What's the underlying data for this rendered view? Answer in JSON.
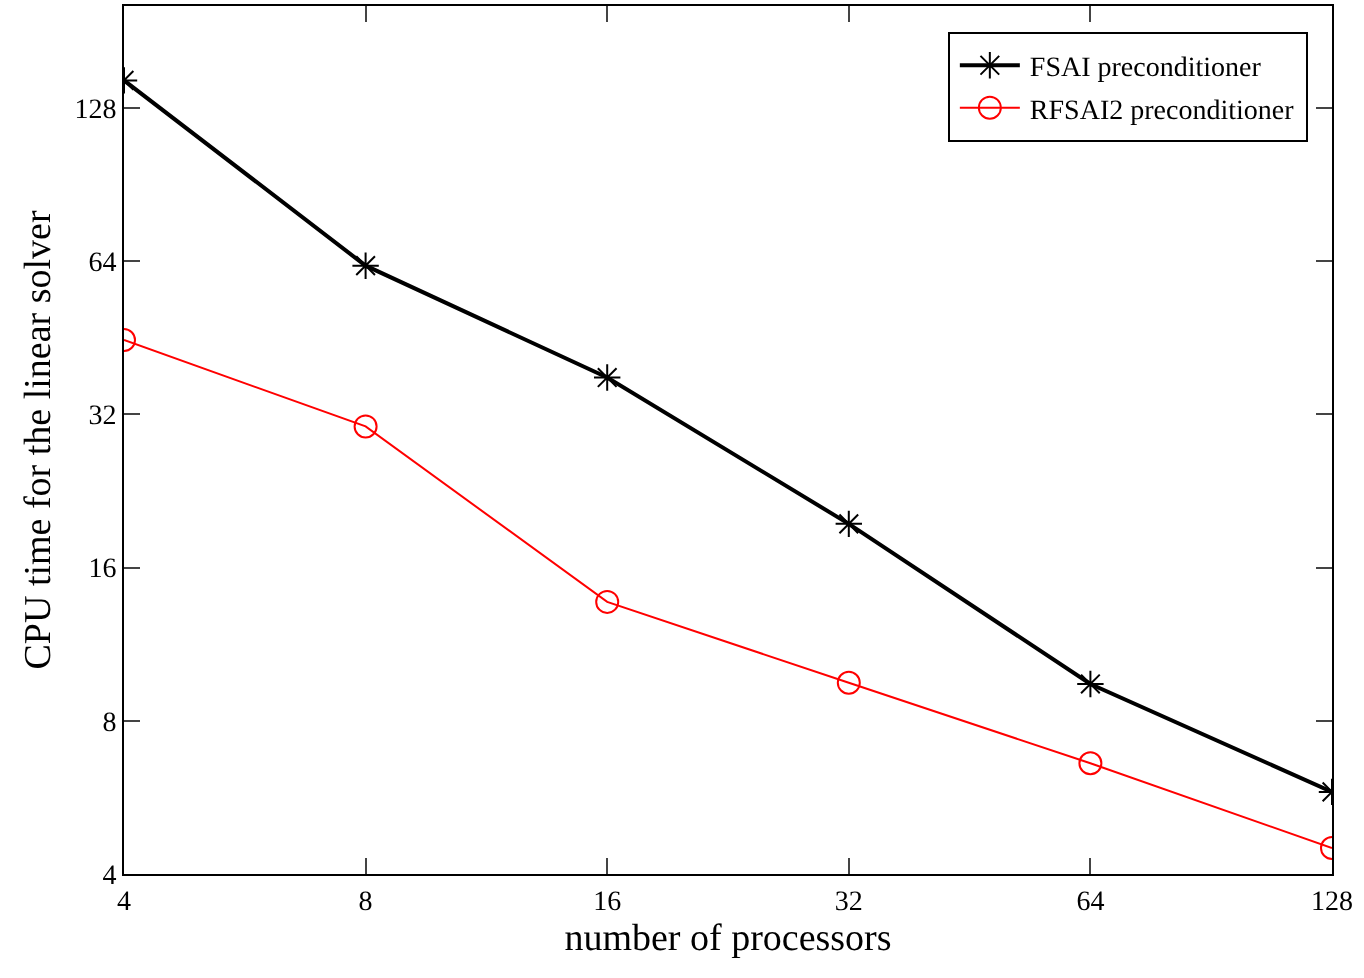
{
  "chart_data": {
    "type": "line",
    "xlabel": "number of processors",
    "ylabel": "CPU time for the linear solver",
    "log": "xy",
    "legend": "top right",
    "x": [
      4,
      8,
      16,
      32,
      64,
      128
    ],
    "xlim": [
      4,
      128
    ],
    "xticks": [
      4,
      8,
      16,
      32,
      64,
      128
    ],
    "ylim": [
      4,
      203
    ],
    "yticks": [
      4,
      8,
      16,
      32,
      64,
      128
    ],
    "series": [
      {
        "name": "FSAI preconditioner",
        "color": "#000000",
        "marker": "cross",
        "values": [
          145,
          62.7,
          37.8,
          19.5,
          9.45,
          5.8
        ]
      },
      {
        "name": "RFSAI2 preconditioner",
        "color": "#ff0000",
        "marker": "circle",
        "values": [
          44.8,
          30.3,
          13.7,
          9.5,
          6.6,
          4.5
        ]
      }
    ]
  }
}
